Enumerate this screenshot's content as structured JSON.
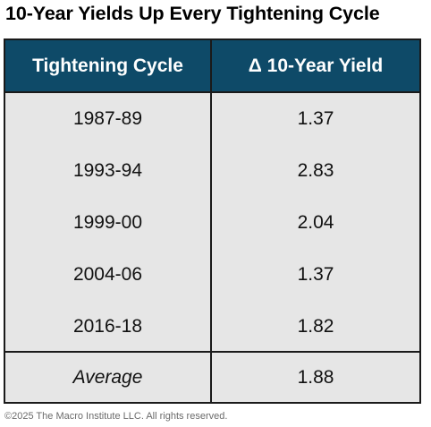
{
  "title": "10-Year Yields Up Every Tightening Cycle",
  "table": {
    "header": {
      "col1": "Tightening Cycle",
      "col2": "Δ 10-Year Yield"
    },
    "rows": [
      {
        "cycle": "1987-89",
        "yield": "1.37"
      },
      {
        "cycle": "1993-94",
        "yield": "2.83"
      },
      {
        "cycle": "1999-00",
        "yield": "2.04"
      },
      {
        "cycle": "2004-06",
        "yield": "1.37"
      },
      {
        "cycle": "2016-18",
        "yield": "1.82"
      }
    ],
    "average": {
      "label": "Average",
      "value": "1.88"
    }
  },
  "footer": "©2025 The Macro Institute LLC. All rights reserved.",
  "colors": {
    "header_bg": "#0e4a68",
    "header_text": "#ffffff",
    "body_bg": "#e6e6e6",
    "border": "#1a1a1a"
  }
}
